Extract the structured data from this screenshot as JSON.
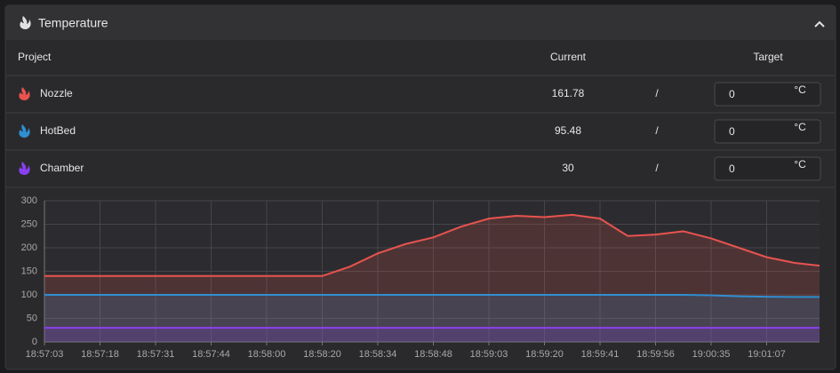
{
  "panel": {
    "title": "Temperature"
  },
  "table": {
    "header": [
      "Project",
      "Current",
      "Target"
    ],
    "rows": [
      {
        "name": "Nozzle",
        "current": 161.78,
        "separator": "/",
        "target": 0,
        "unit": "°C"
      },
      {
        "name": "HotBed",
        "current": 95.48,
        "separator": "/",
        "target": 0,
        "unit": "°C"
      },
      {
        "name": "Chamber",
        "current": 30,
        "separator": "/",
        "target": 0,
        "unit": "°C"
      }
    ]
  },
  "chart_data": {
    "type": "line",
    "x": [
      "18:57:03",
      null,
      "18:57:18",
      null,
      "18:57:31",
      null,
      "18:57:44",
      null,
      "18:58:00",
      null,
      "18:58:20",
      null,
      "18:58:34",
      null,
      "18:58:48",
      null,
      "18:59:03",
      null,
      "18:59:20",
      null,
      "18:59:41",
      null,
      "18:59:56",
      null,
      "19:00:35",
      null,
      "19:01:07",
      null,
      null
    ],
    "series": [
      {
        "name": "Nozzle",
        "color": "#e8534f",
        "values": [
          140,
          140,
          140,
          140,
          140,
          140,
          140,
          140,
          140,
          140,
          140,
          160,
          188,
          208,
          222,
          245,
          262,
          268,
          265,
          270,
          262,
          225,
          228,
          235,
          220,
          200,
          180,
          168,
          162
        ]
      },
      {
        "name": "HotBed",
        "color": "#2f8fd0",
        "values": [
          100,
          100,
          100,
          100,
          100,
          100,
          100,
          100,
          100,
          100,
          100,
          100,
          100,
          100,
          100,
          100,
          100,
          100,
          100,
          100,
          100,
          100,
          100,
          100,
          99,
          97,
          96,
          95.5,
          95.48
        ]
      },
      {
        "name": "Chamber",
        "color": "#8a3ff0",
        "values": [
          30,
          30,
          30,
          30,
          30,
          30,
          30,
          30,
          30,
          30,
          30,
          30,
          30,
          30,
          30,
          30,
          30,
          30,
          30,
          30,
          30,
          30,
          30,
          30,
          30,
          30,
          30,
          30,
          30
        ]
      }
    ],
    "ylim": [
      0,
      300
    ],
    "yticks": [
      0,
      50,
      100,
      150,
      200,
      250,
      300
    ],
    "grid": true,
    "area": true
  }
}
